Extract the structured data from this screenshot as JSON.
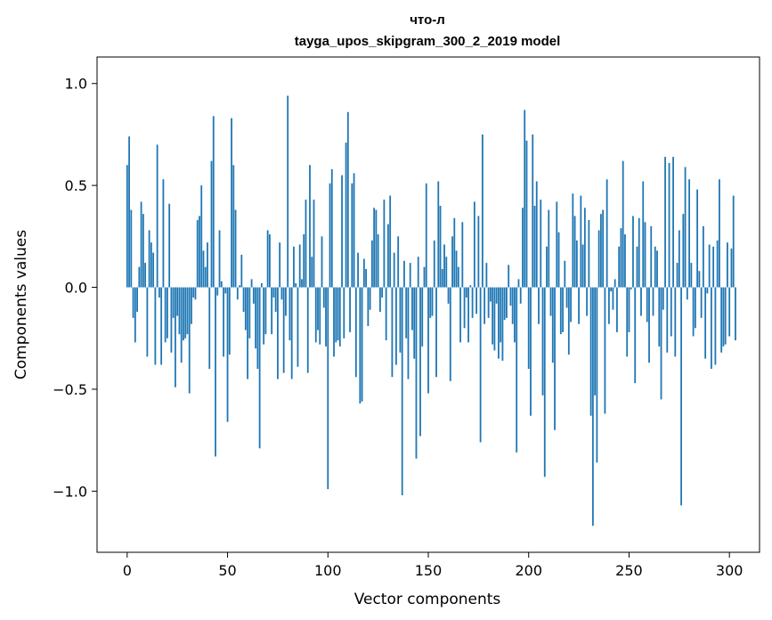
{
  "chart_data": {
    "type": "bar",
    "title": "что-л",
    "subtitle": "tayga_upos_skipgram_300_2_2019 model",
    "xlabel": "Vector components",
    "ylabel": "Components values",
    "xlim": [
      -15,
      315
    ],
    "ylim": [
      -1.3,
      1.13
    ],
    "xticks": [
      0,
      50,
      100,
      150,
      200,
      250,
      300
    ],
    "xtick_labels": [
      "0",
      "50",
      "100",
      "150",
      "200",
      "250",
      "300"
    ],
    "yticks": [
      -1.0,
      -0.5,
      0.0,
      0.5,
      1.0
    ],
    "ytick_labels": [
      "−1.0",
      "−0.5",
      "0.0",
      "0.5",
      "1.0"
    ],
    "bar_color": "#1f77b4",
    "grid": false,
    "values": [
      0.6,
      0.74,
      0.38,
      -0.15,
      -0.27,
      -0.12,
      0.1,
      0.42,
      0.36,
      0.12,
      -0.34,
      0.28,
      0.22,
      0.17,
      -0.38,
      0.7,
      -0.05,
      -0.38,
      0.53,
      -0.27,
      -0.25,
      0.41,
      -0.32,
      -0.15,
      -0.49,
      -0.14,
      -0.23,
      -0.37,
      -0.26,
      -0.25,
      -0.23,
      -0.52,
      -0.18,
      -0.05,
      -0.06,
      0.33,
      0.35,
      0.5,
      0.18,
      0.1,
      0.22,
      -0.4,
      0.62,
      0.84,
      -0.83,
      -0.04,
      0.28,
      0.03,
      -0.34,
      -0.03,
      -0.66,
      -0.33,
      0.83,
      0.6,
      0.38,
      -0.06,
      0.01,
      0.16,
      -0.12,
      -0.21,
      -0.45,
      -0.25,
      0.04,
      -0.08,
      -0.3,
      -0.4,
      -0.79,
      0.02,
      -0.28,
      -0.23,
      0.28,
      0.26,
      -0.23,
      -0.05,
      -0.12,
      -0.45,
      0.22,
      -0.06,
      -0.42,
      -0.14,
      0.94,
      -0.26,
      -0.45,
      0.2,
      0.02,
      -0.39,
      0.21,
      0.04,
      0.26,
      0.43,
      -0.42,
      0.6,
      0.15,
      0.43,
      -0.27,
      -0.21,
      -0.28,
      0.25,
      -0.1,
      -0.29,
      -0.99,
      0.51,
      0.58,
      -0.34,
      -0.27,
      -0.26,
      -0.29,
      0.55,
      -0.25,
      0.71,
      0.86,
      -0.22,
      0.51,
      0.56,
      -0.44,
      0.17,
      -0.57,
      -0.56,
      0.14,
      0.09,
      -0.19,
      -0.11,
      0.23,
      0.39,
      0.38,
      0.26,
      -0.12,
      -0.05,
      0.43,
      -0.26,
      0.31,
      0.45,
      -0.44,
      0.17,
      -0.38,
      0.25,
      -0.32,
      -1.02,
      0.13,
      -0.25,
      -0.45,
      0.12,
      -0.21,
      -0.35,
      -0.84,
      0.15,
      -0.73,
      -0.29,
      0.1,
      0.51,
      -0.52,
      -0.15,
      -0.14,
      0.23,
      -0.44,
      0.52,
      0.4,
      0.09,
      0.21,
      0.15,
      -0.08,
      -0.46,
      0.25,
      0.34,
      0.18,
      0.1,
      -0.27,
      0.32,
      -0.2,
      -0.05,
      -0.27,
      0.01,
      -0.15,
      0.42,
      -0.13,
      0.35,
      -0.76,
      0.75,
      -0.18,
      0.12,
      -0.15,
      -0.07,
      -0.28,
      -0.31,
      -0.08,
      -0.35,
      -0.27,
      -0.36,
      -0.16,
      -0.15,
      0.11,
      -0.09,
      -0.18,
      -0.27,
      -0.81,
      0.04,
      -0.08,
      0.39,
      0.87,
      0.72,
      -0.4,
      -0.63,
      0.75,
      0.4,
      0.52,
      -0.18,
      0.43,
      -0.53,
      -0.93,
      0.2,
      0.38,
      -0.14,
      -0.37,
      -0.7,
      0.42,
      0.27,
      -0.23,
      -0.22,
      0.13,
      -0.1,
      -0.33,
      -0.17,
      0.46,
      0.35,
      0.23,
      -0.18,
      0.45,
      0.21,
      0.39,
      -0.14,
      0.33,
      -0.63,
      -1.17,
      -0.53,
      -0.86,
      0.28,
      0.36,
      0.38,
      -0.62,
      0.53,
      -0.18,
      -0.02,
      -0.11,
      0.04,
      -0.22,
      0.2,
      0.29,
      0.62,
      0.26,
      -0.34,
      -0.22,
      -0.01,
      0.35,
      -0.47,
      0.2,
      0.34,
      -0.14,
      0.52,
      0.32,
      -0.17,
      -0.37,
      0.3,
      -0.14,
      0.2,
      0.18,
      -0.29,
      -0.55,
      -0.11,
      0.64,
      -0.32,
      0.61,
      -0.24,
      0.64,
      -0.34,
      0.12,
      0.28,
      -1.07,
      0.36,
      0.59,
      -0.06,
      0.53,
      0.12,
      -0.24,
      -0.2,
      0.48,
      0.08,
      -0.15,
      0.3,
      -0.35,
      -0.03,
      0.21,
      -0.4,
      0.2,
      -0.38,
      0.23,
      0.53,
      -0.32,
      -0.29,
      -0.28,
      0.22,
      -0.24,
      0.19,
      0.45,
      -0.26
    ]
  }
}
